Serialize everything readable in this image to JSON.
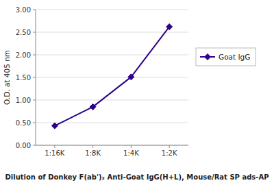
{
  "chart_data": {
    "type": "line",
    "categories": [
      "1:16K",
      "1:8K",
      "1:4K",
      "1:2K"
    ],
    "series": [
      {
        "name": "Goat IgG",
        "color": "#2E008B",
        "marker": "diamond",
        "line_style": "solid",
        "values": [
          0.43,
          0.85,
          1.51,
          2.62
        ]
      }
    ],
    "y_label": "O.D. at 405 nm",
    "x_label": "Dilution of Donkey F(ab')₂ Anti-Goat IgG(H+L), Mouse/Rat SP ads-AP",
    "ylim": [
      0.0,
      3.0
    ],
    "yticks": [
      {
        "value": 0.0,
        "label": "0.00"
      },
      {
        "value": 0.5,
        "label": "0.50"
      },
      {
        "value": 1.0,
        "label": "1.00"
      },
      {
        "value": 1.5,
        "label": "1.50"
      },
      {
        "value": 2.0,
        "label": "2.00"
      },
      {
        "value": 2.5,
        "label": "2.50"
      },
      {
        "value": 3.0,
        "label": "3.00"
      }
    ],
    "grid": true,
    "legend": "right"
  }
}
